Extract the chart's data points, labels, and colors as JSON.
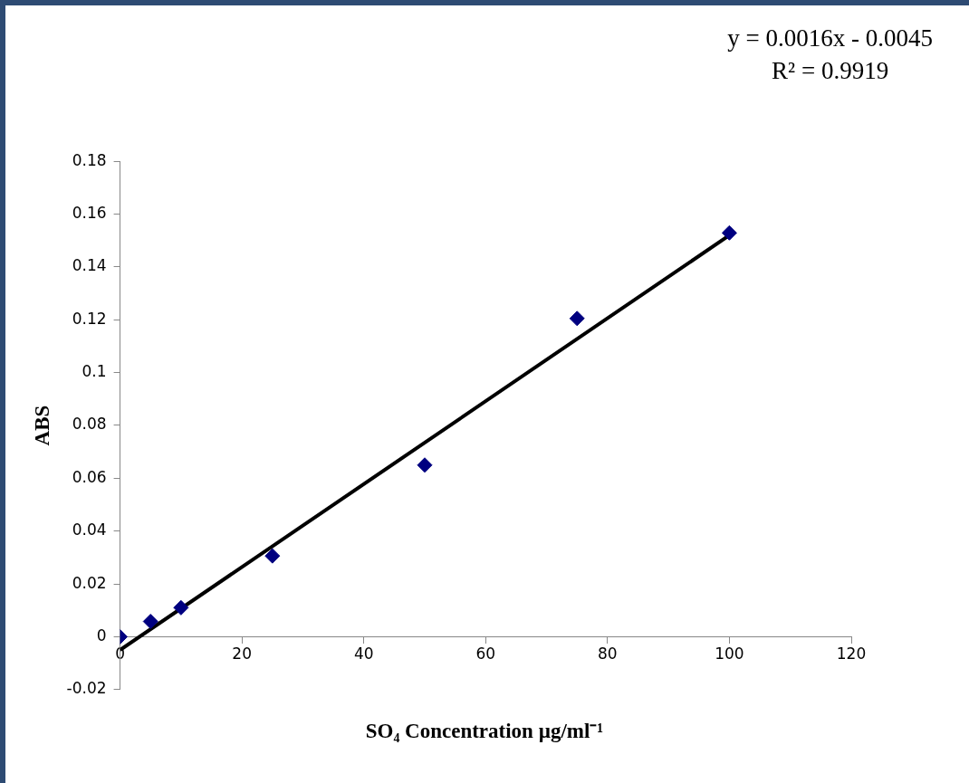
{
  "chart_data": {
    "type": "scatter",
    "xlabel": "SO₄ Concentration µg/ml⁻¹",
    "ylabel": "ABS",
    "annotations": [
      "y = 0.0016x - 0.0045",
      "R² = 0.9919"
    ],
    "xlim": [
      0,
      120
    ],
    "xticks": [
      0,
      20,
      40,
      60,
      80,
      100,
      120
    ],
    "ylim": [
      -0.02,
      0.18
    ],
    "yticks": [
      -0.02,
      0,
      0.02,
      0.04,
      0.06,
      0.08,
      0.1,
      0.12,
      0.14,
      0.16,
      0.18
    ],
    "grid": false,
    "marker": "diamond",
    "series": [
      {
        "type": "scatter",
        "color": "#000080",
        "x": [
          0,
          5,
          10,
          25,
          50,
          75,
          100
        ],
        "values": [
          0,
          0.0058,
          0.011,
          0.0306,
          0.065,
          0.1205,
          0.1529
        ]
      },
      {
        "type": "line",
        "color": "#000000",
        "x": [
          0,
          100
        ],
        "values": [
          -0.005,
          0.152
        ],
        "marker": "none"
      }
    ]
  }
}
